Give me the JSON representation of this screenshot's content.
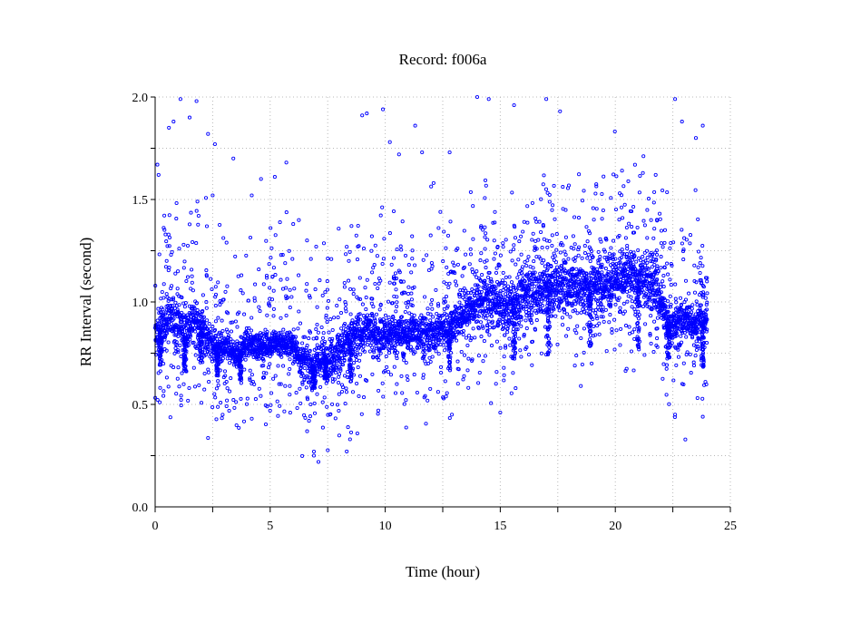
{
  "chart_data": {
    "type": "scatter",
    "title": "Record:  f006a",
    "xlabel": "Time (hour)",
    "ylabel": "RR Interval (second)",
    "xlim": [
      0,
      25
    ],
    "ylim": [
      0,
      2.0
    ],
    "x_ticks": [
      0,
      5,
      10,
      15,
      20,
      25
    ],
    "x_tick_labels": [
      "0",
      "5",
      "10",
      "15",
      "20",
      "25"
    ],
    "y_ticks": [
      0.0,
      0.5,
      1.0,
      1.5,
      2.0
    ],
    "y_tick_labels": [
      "0.0",
      "0.5",
      "1.0",
      "1.5",
      "2.0"
    ],
    "grid": true,
    "marker_color": "#0000ff",
    "marker": "open-circle",
    "trend": [
      [
        0.0,
        0.82
      ],
      [
        0.3,
        0.88
      ],
      [
        0.6,
        0.93
      ],
      [
        1.0,
        0.9
      ],
      [
        1.3,
        0.85
      ],
      [
        1.7,
        0.92
      ],
      [
        2.0,
        0.88
      ],
      [
        2.4,
        0.8
      ],
      [
        2.8,
        0.76
      ],
      [
        3.2,
        0.78
      ],
      [
        3.6,
        0.74
      ],
      [
        4.0,
        0.8
      ],
      [
        4.5,
        0.78
      ],
      [
        5.0,
        0.8
      ],
      [
        5.5,
        0.8
      ],
      [
        6.0,
        0.79
      ],
      [
        6.3,
        0.72
      ],
      [
        6.8,
        0.68
      ],
      [
        7.3,
        0.72
      ],
      [
        7.8,
        0.74
      ],
      [
        8.3,
        0.8
      ],
      [
        8.8,
        0.84
      ],
      [
        9.3,
        0.86
      ],
      [
        9.8,
        0.83
      ],
      [
        10.3,
        0.85
      ],
      [
        10.8,
        0.84
      ],
      [
        11.3,
        0.86
      ],
      [
        11.8,
        0.84
      ],
      [
        12.3,
        0.86
      ],
      [
        12.8,
        0.88
      ],
      [
        13.3,
        0.93
      ],
      [
        13.8,
        0.98
      ],
      [
        14.3,
        1.02
      ],
      [
        14.8,
        1.0
      ],
      [
        15.3,
        0.98
      ],
      [
        15.8,
        1.02
      ],
      [
        16.3,
        1.05
      ],
      [
        16.8,
        1.06
      ],
      [
        17.3,
        1.08
      ],
      [
        17.8,
        1.08
      ],
      [
        18.3,
        1.08
      ],
      [
        18.8,
        1.07
      ],
      [
        19.3,
        1.1
      ],
      [
        19.8,
        1.12
      ],
      [
        20.3,
        1.11
      ],
      [
        20.8,
        1.12
      ],
      [
        21.3,
        1.1
      ],
      [
        21.8,
        1.08
      ],
      [
        22.2,
        0.9
      ],
      [
        22.6,
        0.88
      ],
      [
        23.0,
        0.92
      ],
      [
        23.5,
        0.9
      ],
      [
        24.0,
        0.92
      ]
    ],
    "spread": [
      [
        0.0,
        0.1
      ],
      [
        1.0,
        0.13
      ],
      [
        2.5,
        0.08
      ],
      [
        4.0,
        0.06
      ],
      [
        6.0,
        0.07
      ],
      [
        7.0,
        0.1
      ],
      [
        8.5,
        0.1
      ],
      [
        12.5,
        0.09
      ],
      [
        14.0,
        0.12
      ],
      [
        17.0,
        0.13
      ],
      [
        21.8,
        0.13
      ],
      [
        22.2,
        0.1
      ],
      [
        24.0,
        0.1
      ]
    ],
    "dips": [
      [
        0.25,
        0.68
      ],
      [
        1.3,
        0.66
      ],
      [
        2.0,
        0.7
      ],
      [
        2.7,
        0.64
      ],
      [
        3.7,
        0.62
      ],
      [
        6.9,
        0.58
      ],
      [
        7.4,
        0.62
      ],
      [
        8.5,
        0.6
      ],
      [
        12.8,
        0.66
      ],
      [
        15.6,
        0.72
      ],
      [
        17.1,
        0.74
      ],
      [
        18.9,
        0.78
      ],
      [
        21.0,
        0.76
      ],
      [
        22.3,
        0.72
      ],
      [
        23.8,
        0.68
      ]
    ],
    "outliers": [
      [
        0.1,
        1.67
      ],
      [
        0.15,
        1.62
      ],
      [
        0.6,
        1.85
      ],
      [
        0.8,
        1.88
      ],
      [
        1.1,
        1.99
      ],
      [
        1.5,
        1.9
      ],
      [
        1.8,
        1.98
      ],
      [
        2.3,
        1.82
      ],
      [
        2.6,
        1.77
      ],
      [
        2.5,
        1.52
      ],
      [
        3.4,
        1.7
      ],
      [
        4.2,
        1.52
      ],
      [
        4.6,
        1.6
      ],
      [
        5.2,
        1.61
      ],
      [
        5.7,
        1.68
      ],
      [
        9.0,
        1.91
      ],
      [
        9.2,
        1.92
      ],
      [
        9.9,
        1.94
      ],
      [
        10.2,
        1.78
      ],
      [
        10.6,
        1.72
      ],
      [
        11.3,
        1.86
      ],
      [
        11.6,
        1.73
      ],
      [
        12.1,
        1.58
      ],
      [
        12.8,
        1.73
      ],
      [
        14.0,
        2.0
      ],
      [
        14.5,
        1.99
      ],
      [
        15.6,
        1.96
      ],
      [
        17.0,
        1.99
      ],
      [
        17.6,
        1.93
      ],
      [
        22.6,
        1.99
      ],
      [
        22.9,
        1.88
      ],
      [
        23.5,
        1.8
      ],
      [
        23.8,
        1.86
      ],
      [
        0.2,
        0.51
      ],
      [
        6.9,
        0.27
      ],
      [
        6.9,
        0.25
      ],
      [
        7.6,
        0.45
      ],
      [
        9.7,
        0.47
      ],
      [
        12.9,
        0.45
      ],
      [
        15.0,
        0.46
      ],
      [
        22.6,
        0.45
      ],
      [
        23.8,
        0.44
      ],
      [
        4.2,
        0.43
      ],
      [
        6.0,
        1.38
      ],
      [
        6.6,
        1.3
      ],
      [
        7.0,
        1.27
      ],
      [
        18.5,
        0.59
      ]
    ]
  }
}
